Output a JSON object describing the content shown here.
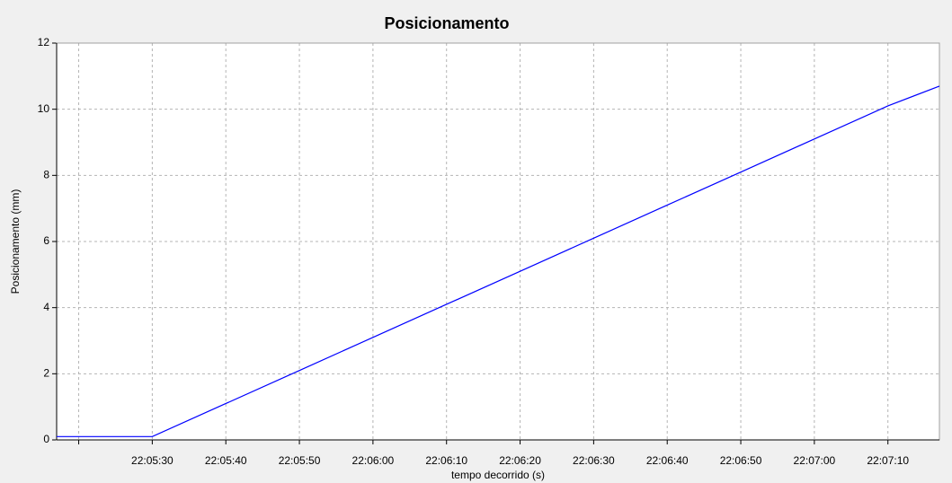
{
  "chart_data": {
    "type": "line",
    "title": "Posicionamento",
    "x_label": "tempo decorrido (s)",
    "y_label": "Posicionamento (mm)",
    "x": [
      "22:05:17",
      "22:05:30",
      "22:05:40",
      "22:05:50",
      "22:06:00",
      "22:06:10",
      "22:06:20",
      "22:06:30",
      "22:06:40",
      "22:06:50",
      "22:07:00",
      "22:07:10",
      "22:07:17"
    ],
    "series": [
      {
        "name": "Posicionamento",
        "color": "#0000ff",
        "values": [
          0.1,
          0.1,
          1.1,
          2.1,
          3.1,
          4.1,
          5.1,
          6.1,
          7.1,
          8.1,
          9.1,
          10.1,
          10.7
        ]
      }
    ],
    "xlim": [
      "22:05:17",
      "22:07:17"
    ],
    "xticks": [
      {
        "value": "22:05:20",
        "label": null
      },
      "22:05:30",
      "22:05:40",
      "22:05:50",
      "22:06:00",
      "22:06:10",
      "22:06:20",
      "22:06:30",
      "22:06:40",
      "22:06:50",
      "22:07:00",
      "22:07:10"
    ],
    "ylim": [
      0,
      12
    ],
    "yticks": [
      0,
      2,
      4,
      6,
      8,
      10,
      12
    ],
    "grid": true
  }
}
